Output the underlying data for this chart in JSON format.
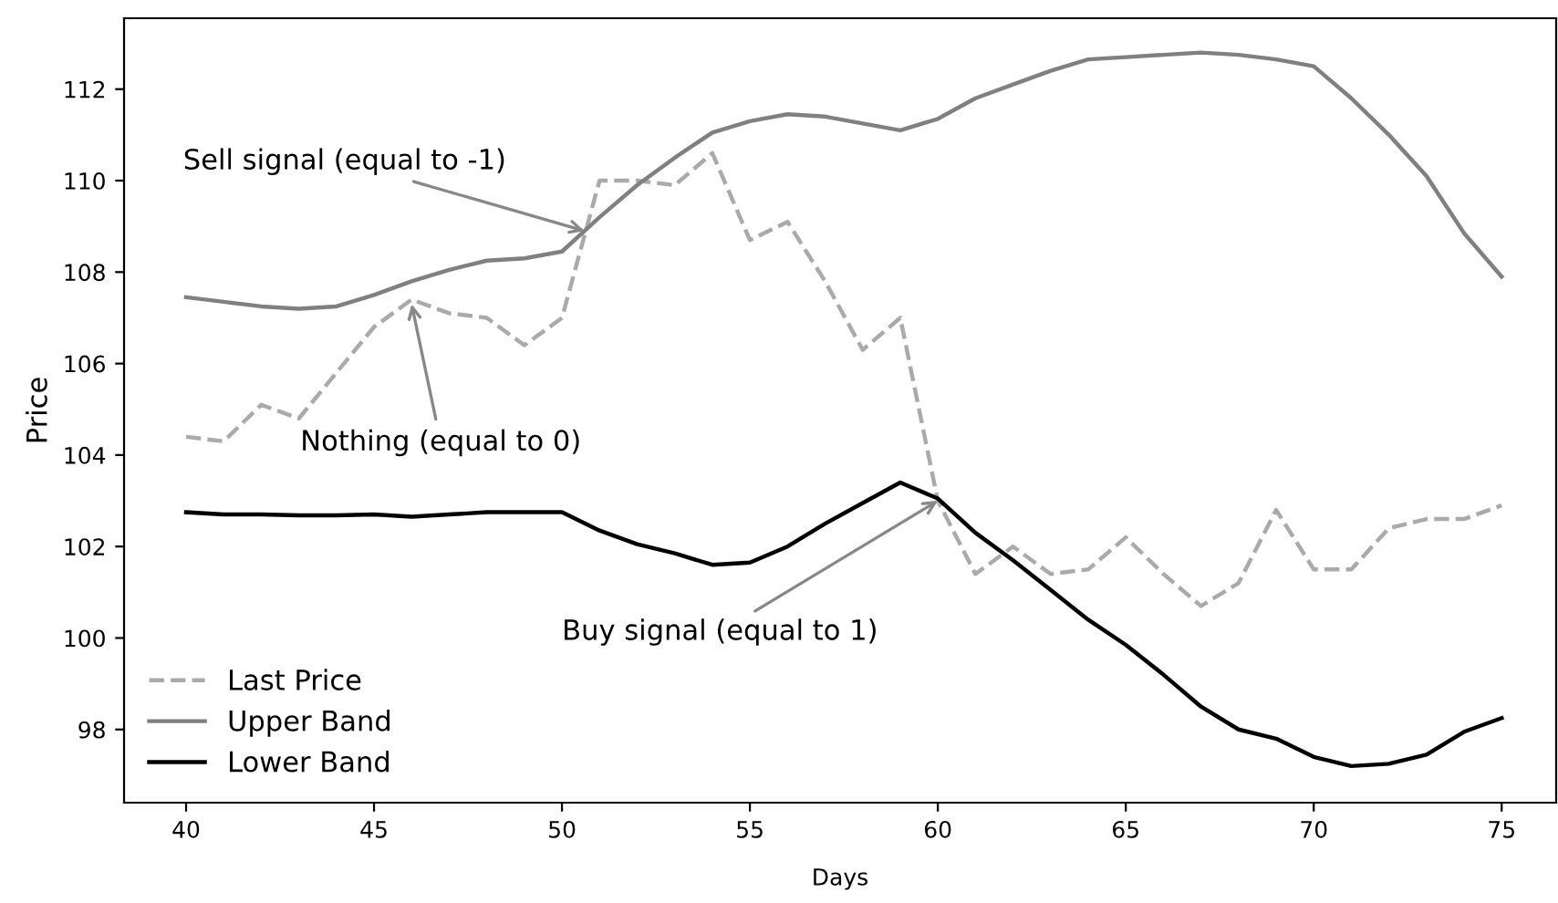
{
  "chart_data": {
    "type": "line",
    "xlabel": "Days",
    "ylabel": "Price",
    "x": [
      40,
      41,
      42,
      43,
      44,
      45,
      46,
      47,
      48,
      49,
      50,
      51,
      52,
      53,
      54,
      55,
      56,
      57,
      58,
      59,
      60,
      61,
      62,
      63,
      64,
      65,
      66,
      67,
      68,
      69,
      70,
      71,
      72,
      73,
      74,
      75
    ],
    "series": [
      {
        "name": "Last Price",
        "color": "#aaaaaa",
        "line_style": "dashed",
        "values": [
          104.4,
          104.3,
          105.1,
          104.8,
          105.8,
          106.8,
          107.4,
          107.1,
          107.0,
          106.4,
          107.0,
          110.0,
          110.0,
          109.9,
          110.6,
          108.7,
          109.1,
          107.8,
          106.3,
          107.0,
          103.0,
          101.4,
          102.0,
          101.4,
          101.5,
          102.2,
          101.4,
          100.7,
          101.2,
          102.8,
          101.5,
          101.5,
          102.4,
          102.6,
          102.6,
          102.9
        ]
      },
      {
        "name": "Upper Band",
        "color": "#808080",
        "line_style": "solid",
        "values": [
          107.45,
          107.35,
          107.25,
          107.2,
          107.25,
          107.5,
          107.8,
          108.05,
          108.25,
          108.3,
          108.45,
          109.2,
          109.9,
          110.5,
          111.05,
          111.3,
          111.45,
          111.4,
          111.25,
          111.1,
          111.35,
          111.8,
          112.1,
          112.4,
          112.65,
          112.7,
          112.75,
          112.8,
          112.75,
          112.65,
          112.5,
          111.8,
          111.0,
          110.1,
          108.85,
          107.9
        ]
      },
      {
        "name": "Lower Band",
        "color": "#000000",
        "line_style": "solid",
        "values": [
          102.75,
          102.7,
          102.7,
          102.68,
          102.68,
          102.7,
          102.65,
          102.7,
          102.75,
          102.75,
          102.75,
          102.35,
          102.05,
          101.85,
          101.6,
          101.65,
          102.0,
          102.5,
          102.95,
          103.4,
          103.05,
          102.3,
          101.7,
          101.05,
          100.4,
          99.85,
          99.2,
          98.5,
          98.0,
          97.8,
          97.4,
          97.2,
          97.25,
          97.45,
          97.95,
          98.25
        ]
      }
    ],
    "annotations": [
      {
        "text": "Sell signal (equal to -1)",
        "x": 50.6,
        "y": 108.9
      },
      {
        "text": "Nothing (equal to 0)",
        "x": 46,
        "y": 107.3
      },
      {
        "text": "Buy signal (equal to 1)",
        "x": 60,
        "y": 103.0
      }
    ],
    "xlim": [
      38.35,
      76.45
    ],
    "ylim": [
      96.4,
      113.55
    ],
    "xticks": [
      40,
      45,
      50,
      55,
      60,
      65,
      70,
      75
    ],
    "yticks": [
      98,
      100,
      102,
      104,
      106,
      108,
      110,
      112
    ],
    "grid": false,
    "legend": "lower left",
    "marker": "none"
  }
}
